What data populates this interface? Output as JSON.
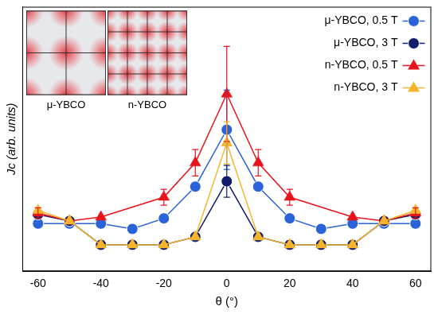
{
  "chart_data": {
    "type": "line",
    "x_label": "θ (°)",
    "y_label": "Jc (arb. units)",
    "xlim": [
      -65,
      65
    ],
    "xticks": [
      -60,
      -40,
      -20,
      0,
      20,
      40,
      60
    ],
    "ylim": [
      0,
      100
    ],
    "tick_labels": "x",
    "grid": false,
    "legend": "upper right",
    "x": [
      -60,
      -50,
      -40,
      -30,
      -20,
      -10,
      0,
      10,
      20,
      30,
      40,
      50,
      60
    ],
    "series": [
      {
        "name": "μ-YBCO, 0.5 T",
        "color": "#2a62d8",
        "marker": "circle",
        "line_style": "solid",
        "values": [
          18,
          18,
          18,
          16,
          20,
          32,
          53.5,
          32,
          20,
          16,
          18,
          18,
          18
        ],
        "errors": [
          null,
          null,
          null,
          null,
          null,
          null,
          15,
          null,
          null,
          null,
          null,
          null,
          null
        ]
      },
      {
        "name": "μ-YBCO, 3 T",
        "color": "#101d6b",
        "marker": "circle",
        "line_style": "solid",
        "values": [
          21.5,
          19,
          10,
          10,
          10,
          13,
          34,
          13,
          10,
          10,
          10,
          19,
          21.5
        ],
        "errors": [
          null,
          null,
          null,
          null,
          null,
          null,
          6,
          null,
          null,
          null,
          null,
          null,
          null
        ]
      },
      {
        "name": "n-YBCO, 0.5 T",
        "color": "#e8141c",
        "marker": "triangle",
        "line_style": "solid",
        "x": [
          -60,
          -50,
          -40,
          -20,
          -10,
          0,
          10,
          20,
          40,
          50,
          60
        ],
        "values": [
          22,
          19,
          20.5,
          28,
          41,
          67,
          41,
          28,
          20.5,
          19,
          22
        ],
        "errors": [
          2,
          null,
          null,
          3,
          5,
          18,
          5,
          3,
          null,
          null,
          2
        ]
      },
      {
        "name": "n-YBCO, 3 T",
        "color": "#f5b42a",
        "marker": "triangle",
        "line_style": "solid",
        "values": [
          23,
          19,
          10,
          10,
          10,
          13,
          48.5,
          13,
          10,
          10,
          10,
          19,
          23
        ],
        "errors": [
          null,
          null,
          null,
          null,
          null,
          null,
          8,
          null,
          null,
          null,
          null,
          null,
          null
        ]
      }
    ],
    "inset": {
      "labels": [
        "μ-YBCO",
        "n-YBCO"
      ]
    }
  }
}
